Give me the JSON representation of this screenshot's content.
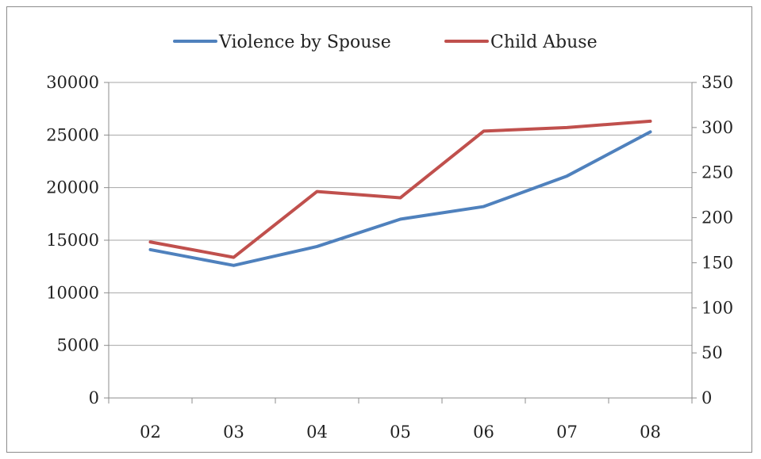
{
  "chart_data": {
    "type": "line",
    "title": "",
    "xlabel": "",
    "ylabel": "",
    "categories": [
      "02",
      "03",
      "04",
      "05",
      "06",
      "07",
      "08"
    ],
    "legend_position": "top",
    "grid": true,
    "y_left": {
      "range": [
        0,
        30000
      ],
      "ticks": [
        "0",
        "5000",
        "10000",
        "15000",
        "20000",
        "25000",
        "30000"
      ]
    },
    "y_right": {
      "range": [
        0,
        350
      ],
      "ticks": [
        "0",
        "50",
        "100",
        "150",
        "200",
        "250",
        "300",
        "350"
      ]
    },
    "series": [
      {
        "name": "Violence by Spouse",
        "axis": "left",
        "color": "#4f81bd",
        "values": [
          14100,
          12600,
          14400,
          17000,
          18200,
          21100,
          25300
        ]
      },
      {
        "name": "Child Abuse",
        "axis": "right",
        "color": "#c0504d",
        "values": [
          173,
          156,
          229,
          222,
          296,
          300,
          307
        ]
      }
    ]
  }
}
